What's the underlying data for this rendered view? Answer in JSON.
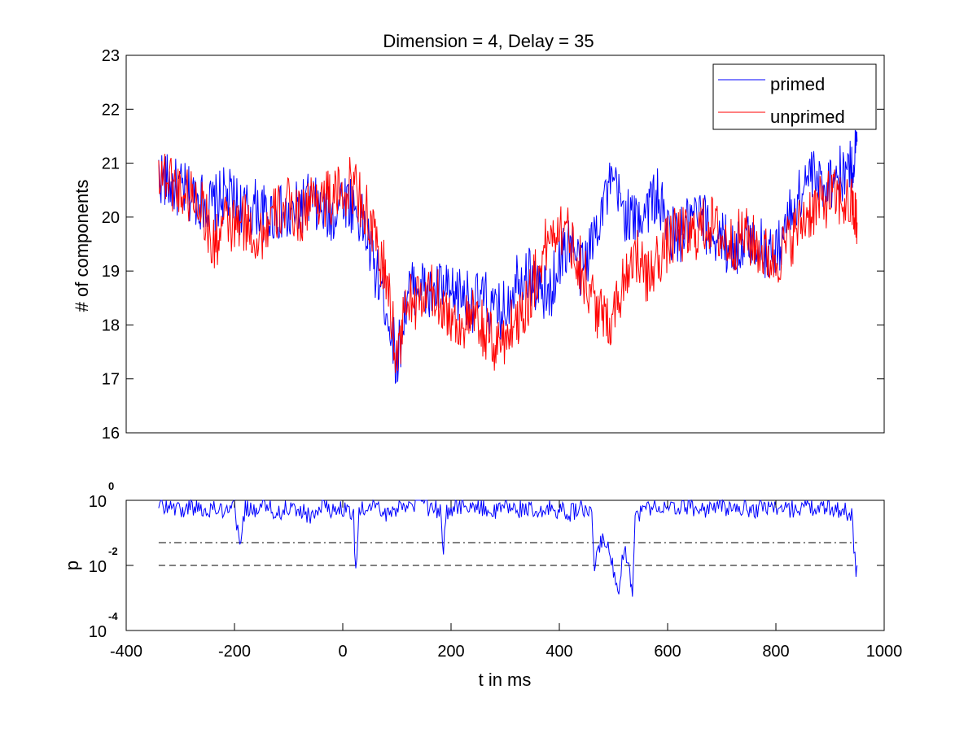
{
  "chart_data": [
    {
      "type": "line",
      "title": "Dimension  = 4, Delay = 35",
      "xlabel": "",
      "ylabel": "# of components",
      "xlim": [
        -400,
        1000
      ],
      "ylim": [
        16,
        23
      ],
      "yticks": [
        "16",
        "17",
        "18",
        "19",
        "20",
        "21",
        "22",
        "23"
      ],
      "grid": false,
      "legend_position": "top-right",
      "series": [
        {
          "name": "primed",
          "color": "#0000ff",
          "x": [
            -340,
            -320,
            -300,
            -280,
            -260,
            -240,
            -220,
            -200,
            -180,
            -160,
            -140,
            -120,
            -100,
            -80,
            -60,
            -40,
            -20,
            0,
            20,
            40,
            60,
            80,
            100,
            120,
            140,
            160,
            180,
            200,
            220,
            240,
            260,
            280,
            300,
            320,
            340,
            360,
            380,
            400,
            420,
            440,
            460,
            480,
            500,
            520,
            540,
            560,
            580,
            600,
            620,
            640,
            660,
            680,
            700,
            720,
            740,
            760,
            780,
            800,
            820,
            840,
            860,
            880,
            900,
            920,
            940,
            950
          ],
          "y": [
            20.8,
            20.6,
            20.5,
            20.4,
            20.3,
            20.2,
            20.4,
            20.3,
            20.1,
            20.2,
            20.0,
            20.1,
            19.9,
            20.2,
            20.3,
            20.1,
            20.0,
            20.4,
            20.2,
            19.8,
            19.0,
            18.4,
            17.3,
            18.6,
            18.8,
            18.5,
            18.7,
            18.5,
            18.6,
            18.4,
            18.5,
            18.2,
            18.3,
            18.9,
            19.0,
            18.7,
            18.5,
            19.2,
            19.6,
            19.0,
            19.5,
            20.3,
            20.6,
            20.1,
            19.9,
            20.2,
            20.4,
            19.8,
            19.6,
            19.9,
            20.0,
            19.7,
            19.6,
            19.4,
            19.5,
            19.6,
            19.4,
            19.3,
            19.9,
            20.3,
            20.8,
            20.6,
            20.7,
            20.8,
            20.9,
            21.4
          ]
        },
        {
          "name": "unprimed",
          "color": "#ff0000",
          "x": [
            -340,
            -320,
            -300,
            -280,
            -260,
            -240,
            -220,
            -200,
            -180,
            -160,
            -140,
            -120,
            -100,
            -80,
            -60,
            -40,
            -20,
            0,
            20,
            40,
            60,
            80,
            100,
            120,
            140,
            160,
            180,
            200,
            220,
            240,
            260,
            280,
            300,
            320,
            340,
            360,
            380,
            400,
            420,
            440,
            460,
            480,
            500,
            520,
            540,
            560,
            580,
            600,
            620,
            640,
            660,
            680,
            700,
            720,
            740,
            760,
            780,
            800,
            820,
            840,
            860,
            880,
            900,
            920,
            940,
            950
          ],
          "y": [
            20.9,
            20.7,
            20.5,
            20.4,
            20.3,
            19.4,
            19.9,
            19.8,
            19.9,
            19.6,
            19.8,
            20.1,
            20.2,
            20.0,
            20.3,
            20.4,
            20.3,
            20.5,
            20.6,
            20.2,
            19.5,
            18.9,
            17.4,
            18.5,
            18.4,
            18.6,
            18.5,
            18.1,
            18.0,
            18.1,
            17.9,
            17.6,
            17.8,
            18.1,
            18.4,
            19.0,
            19.6,
            19.9,
            19.6,
            19.1,
            18.5,
            18.1,
            18.2,
            18.9,
            19.4,
            18.8,
            19.2,
            19.5,
            19.7,
            19.6,
            19.8,
            19.9,
            19.6,
            19.5,
            19.7,
            19.5,
            19.3,
            19.2,
            19.5,
            19.8,
            20.1,
            20.2,
            20.4,
            20.3,
            20.2,
            19.9
          ]
        }
      ]
    },
    {
      "type": "line",
      "title": "",
      "xlabel": "t in ms",
      "ylabel": "p",
      "xlim": [
        -400,
        1000
      ],
      "ylim": [
        0.0001,
        1
      ],
      "yscale": "log",
      "xticks": [
        "-400",
        "-200",
        "0",
        "200",
        "400",
        "600",
        "800",
        "1000"
      ],
      "yticks": [
        {
          "base": "10",
          "exp": "-4"
        },
        {
          "base": "10",
          "exp": "-2"
        },
        {
          "base": "10",
          "exp": "0"
        }
      ],
      "reference_lines": [
        {
          "y": 0.05,
          "style": "dash-dot",
          "color": "#000000"
        },
        {
          "y": 0.01,
          "style": "dashed",
          "color": "#000000"
        }
      ],
      "series": [
        {
          "color": "#0000ff",
          "x": [
            -340,
            -320,
            -300,
            -280,
            -260,
            -240,
            -220,
            -200,
            -190,
            -180,
            -160,
            -140,
            -120,
            -100,
            -80,
            -60,
            -40,
            -20,
            0,
            20,
            24,
            30,
            40,
            60,
            80,
            100,
            120,
            140,
            160,
            180,
            186,
            190,
            200,
            220,
            240,
            260,
            280,
            300,
            320,
            340,
            360,
            380,
            400,
            420,
            440,
            460,
            465,
            480,
            490,
            500,
            510,
            520,
            530,
            535,
            540,
            560,
            580,
            600,
            620,
            640,
            660,
            680,
            700,
            720,
            740,
            760,
            780,
            800,
            820,
            840,
            860,
            880,
            900,
            920,
            940,
            948,
            950
          ],
          "y": [
            0.8,
            0.6,
            0.5,
            0.7,
            0.45,
            0.6,
            0.5,
            0.7,
            0.03,
            0.6,
            0.5,
            0.7,
            0.4,
            0.6,
            0.5,
            0.3,
            0.7,
            0.5,
            0.6,
            0.4,
            0.005,
            0.5,
            0.6,
            0.7,
            0.4,
            0.6,
            0.5,
            0.7,
            0.6,
            0.5,
            0.02,
            0.4,
            0.6,
            0.7,
            0.5,
            0.6,
            0.4,
            0.7,
            0.5,
            0.6,
            0.3,
            0.6,
            0.5,
            0.4,
            0.6,
            0.3,
            0.01,
            0.08,
            0.03,
            0.008,
            0.002,
            0.04,
            0.006,
            0.002,
            0.3,
            0.6,
            0.7,
            0.5,
            0.6,
            0.7,
            0.5,
            0.6,
            0.7,
            0.5,
            0.6,
            0.5,
            0.7,
            0.6,
            0.5,
            0.6,
            0.7,
            0.5,
            0.6,
            0.5,
            0.4,
            0.005,
            0.01
          ]
        }
      ]
    }
  ]
}
